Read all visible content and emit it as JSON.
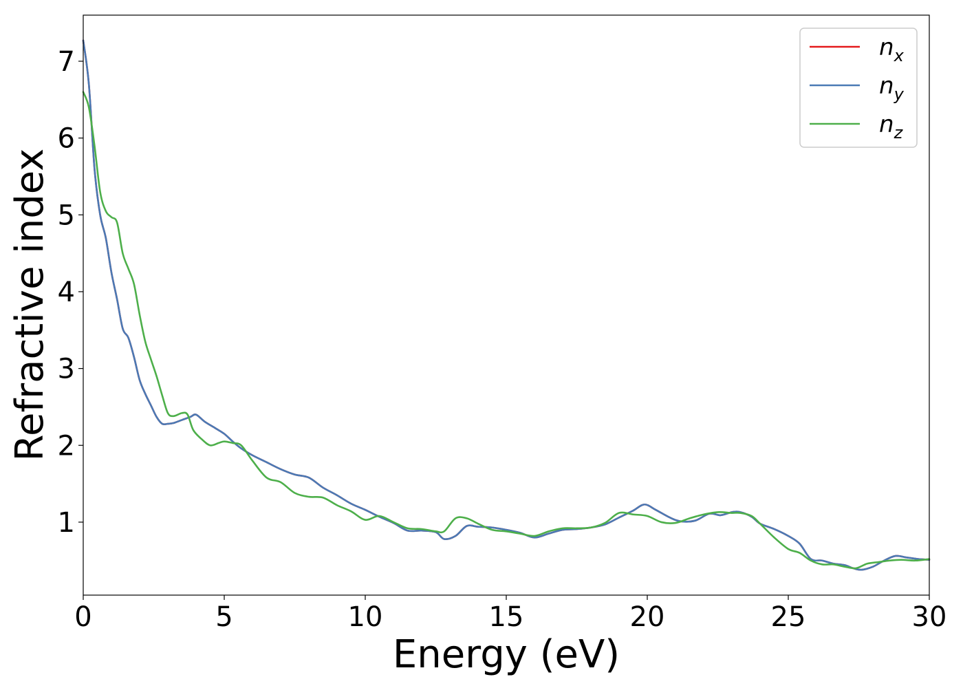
{
  "chart_data": {
    "type": "line",
    "xlabel": "Energy (eV)",
    "ylabel": "Refractive index",
    "xlim": [
      0,
      30
    ],
    "ylim": [
      0.05,
      7.6
    ],
    "xticks": [
      0,
      5,
      10,
      15,
      20,
      25,
      30
    ],
    "yticks": [
      1,
      2,
      3,
      4,
      5,
      6,
      7
    ],
    "grid": false,
    "legend_position": "top-right",
    "series": [
      {
        "name": "n",
        "subscript": "x",
        "color": "#e41a1c",
        "x": [
          0,
          0.2,
          0.4,
          0.6,
          0.8,
          1.0,
          1.2,
          1.4,
          1.6,
          1.8,
          2.0,
          2.2,
          2.4,
          2.6,
          2.8,
          3.0,
          3.2,
          3.5,
          3.8,
          4.0,
          4.3,
          4.7,
          5.0,
          5.3,
          5.6,
          6.0,
          6.5,
          7.0,
          7.5,
          8.0,
          8.5,
          9.0,
          9.5,
          10.0,
          10.5,
          11.0,
          11.5,
          12.0,
          12.5,
          12.8,
          13.2,
          13.6,
          14.0,
          14.5,
          15.0,
          15.5,
          16.0,
          16.5,
          17.0,
          17.5,
          18.0,
          18.5,
          19.0,
          19.5,
          19.9,
          20.3,
          20.8,
          21.2,
          21.7,
          22.2,
          22.6,
          23.0,
          23.3,
          23.7,
          24.0,
          24.5,
          25.0,
          25.4,
          25.8,
          26.2,
          26.6,
          27.0,
          27.3,
          27.6,
          28.0,
          28.4,
          28.8,
          29.2,
          29.6,
          30.0
        ],
        "values": [
          7.27,
          6.7,
          5.6,
          5.0,
          4.7,
          4.25,
          3.9,
          3.52,
          3.4,
          3.15,
          2.85,
          2.67,
          2.52,
          2.37,
          2.28,
          2.28,
          2.29,
          2.33,
          2.37,
          2.4,
          2.31,
          2.22,
          2.15,
          2.05,
          1.96,
          1.87,
          1.78,
          1.69,
          1.62,
          1.58,
          1.45,
          1.35,
          1.24,
          1.16,
          1.07,
          0.99,
          0.89,
          0.89,
          0.87,
          0.78,
          0.82,
          0.95,
          0.94,
          0.93,
          0.9,
          0.86,
          0.8,
          0.85,
          0.9,
          0.91,
          0.93,
          0.97,
          1.06,
          1.15,
          1.23,
          1.16,
          1.06,
          1.01,
          1.02,
          1.11,
          1.09,
          1.13,
          1.13,
          1.07,
          0.98,
          0.91,
          0.82,
          0.72,
          0.52,
          0.5,
          0.46,
          0.44,
          0.4,
          0.38,
          0.42,
          0.5,
          0.56,
          0.54,
          0.52,
          0.51
        ]
      },
      {
        "name": "n",
        "subscript": "y",
        "color": "#4a7ab5",
        "x": [
          0,
          0.2,
          0.4,
          0.6,
          0.8,
          1.0,
          1.2,
          1.4,
          1.6,
          1.8,
          2.0,
          2.2,
          2.4,
          2.6,
          2.8,
          3.0,
          3.2,
          3.5,
          3.8,
          4.0,
          4.3,
          4.7,
          5.0,
          5.3,
          5.6,
          6.0,
          6.5,
          7.0,
          7.5,
          8.0,
          8.5,
          9.0,
          9.5,
          10.0,
          10.5,
          11.0,
          11.5,
          12.0,
          12.5,
          12.8,
          13.2,
          13.6,
          14.0,
          14.5,
          15.0,
          15.5,
          16.0,
          16.5,
          17.0,
          17.5,
          18.0,
          18.5,
          19.0,
          19.5,
          19.9,
          20.3,
          20.8,
          21.2,
          21.7,
          22.2,
          22.6,
          23.0,
          23.3,
          23.7,
          24.0,
          24.5,
          25.0,
          25.4,
          25.8,
          26.2,
          26.6,
          27.0,
          27.3,
          27.6,
          28.0,
          28.4,
          28.8,
          29.2,
          29.6,
          30.0
        ],
        "values": [
          7.27,
          6.7,
          5.6,
          5.0,
          4.7,
          4.25,
          3.9,
          3.52,
          3.4,
          3.15,
          2.85,
          2.67,
          2.52,
          2.37,
          2.28,
          2.28,
          2.29,
          2.33,
          2.37,
          2.4,
          2.31,
          2.22,
          2.15,
          2.05,
          1.96,
          1.87,
          1.78,
          1.69,
          1.62,
          1.58,
          1.45,
          1.35,
          1.24,
          1.16,
          1.07,
          0.99,
          0.89,
          0.89,
          0.87,
          0.78,
          0.82,
          0.95,
          0.94,
          0.93,
          0.9,
          0.86,
          0.8,
          0.85,
          0.9,
          0.91,
          0.93,
          0.97,
          1.06,
          1.15,
          1.23,
          1.16,
          1.06,
          1.01,
          1.02,
          1.11,
          1.09,
          1.13,
          1.13,
          1.07,
          0.98,
          0.91,
          0.82,
          0.72,
          0.52,
          0.5,
          0.46,
          0.44,
          0.4,
          0.38,
          0.42,
          0.5,
          0.56,
          0.54,
          0.52,
          0.51
        ]
      },
      {
        "name": "n",
        "subscript": "z",
        "color": "#4daf4a",
        "x": [
          0,
          0.2,
          0.4,
          0.6,
          0.8,
          1.0,
          1.2,
          1.4,
          1.6,
          1.8,
          2.0,
          2.2,
          2.4,
          2.6,
          2.8,
          3.0,
          3.2,
          3.5,
          3.7,
          3.9,
          4.2,
          4.5,
          4.8,
          5.0,
          5.3,
          5.6,
          6.0,
          6.5,
          7.0,
          7.5,
          8.0,
          8.5,
          9.0,
          9.5,
          10.0,
          10.5,
          11.0,
          11.5,
          12.0,
          12.5,
          12.8,
          13.2,
          13.6,
          14.0,
          14.5,
          15.0,
          15.5,
          16.0,
          16.5,
          17.0,
          17.5,
          18.0,
          18.5,
          19.0,
          19.5,
          20.0,
          20.5,
          21.0,
          21.5,
          22.0,
          22.5,
          23.0,
          23.3,
          23.7,
          24.0,
          24.5,
          25.0,
          25.4,
          25.8,
          26.2,
          26.6,
          27.0,
          27.4,
          27.8,
          28.2,
          28.6,
          29.0,
          29.5,
          30.0
        ],
        "values": [
          6.6,
          6.4,
          5.9,
          5.3,
          5.05,
          4.97,
          4.9,
          4.5,
          4.3,
          4.1,
          3.7,
          3.35,
          3.12,
          2.9,
          2.65,
          2.42,
          2.38,
          2.42,
          2.4,
          2.2,
          2.08,
          2.0,
          2.03,
          2.05,
          2.03,
          2.0,
          1.8,
          1.58,
          1.52,
          1.38,
          1.33,
          1.32,
          1.22,
          1.14,
          1.03,
          1.08,
          1.0,
          0.92,
          0.91,
          0.88,
          0.88,
          1.05,
          1.05,
          0.98,
          0.9,
          0.88,
          0.85,
          0.82,
          0.88,
          0.92,
          0.92,
          0.93,
          0.99,
          1.12,
          1.1,
          1.08,
          1.0,
          0.99,
          1.05,
          1.1,
          1.13,
          1.12,
          1.12,
          1.08,
          0.98,
          0.8,
          0.65,
          0.6,
          0.5,
          0.45,
          0.45,
          0.42,
          0.4,
          0.46,
          0.48,
          0.5,
          0.51,
          0.5,
          0.52
        ]
      }
    ]
  }
}
